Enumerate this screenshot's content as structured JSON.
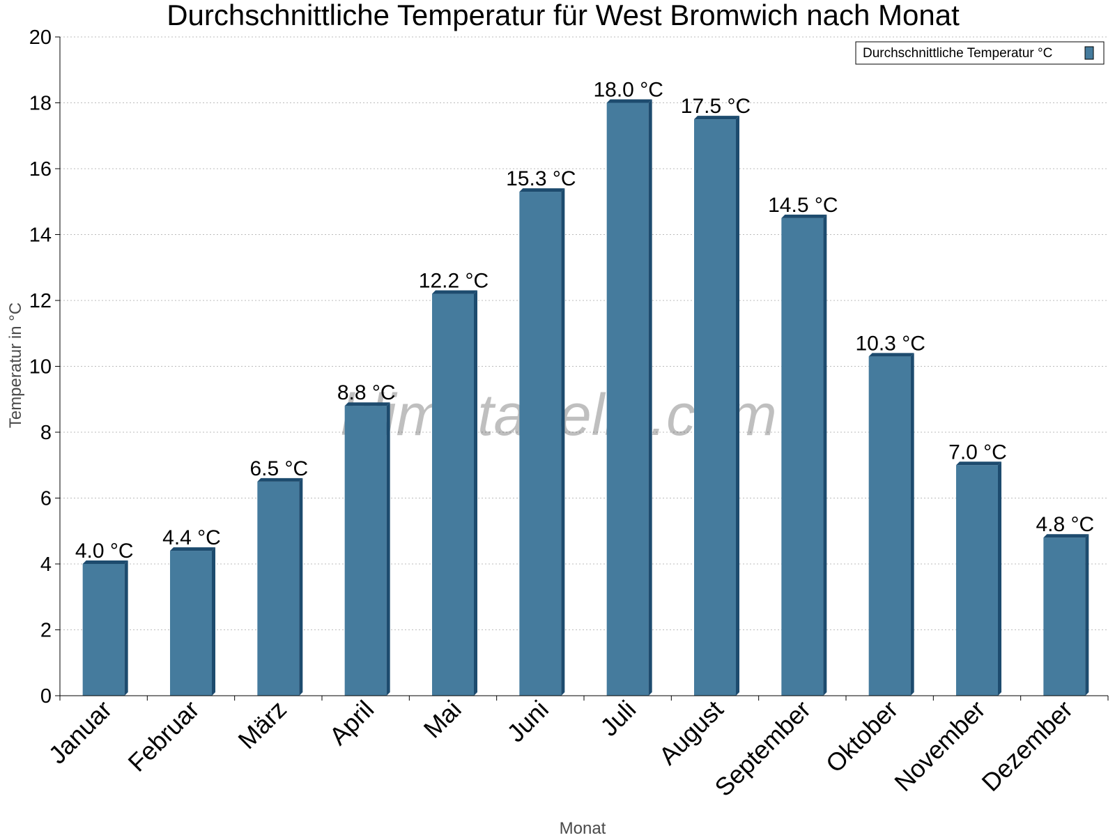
{
  "chart_data": {
    "type": "bar",
    "title": "Durchschnittliche Temperatur für West Bromwich nach Monat",
    "xlabel": "Monat",
    "ylabel": "Temperatur in °C",
    "categories": [
      "Januar",
      "Februar",
      "März",
      "April",
      "Mai",
      "Juni",
      "Juli",
      "August",
      "September",
      "Oktober",
      "November",
      "Dezember"
    ],
    "series": [
      {
        "name": "Durchschnittliche Temperatur °C",
        "values": [
          4.0,
          4.4,
          6.5,
          8.8,
          12.2,
          15.3,
          18.0,
          17.5,
          14.5,
          10.3,
          7.0,
          4.8
        ],
        "data_labels": [
          "4.0 °C",
          "4.4 °C",
          "6.5 °C",
          "8.8 °C",
          "12.2 °C",
          "15.3 °C",
          "18.0 °C",
          "17.5 °C",
          "14.5 °C",
          "10.3 °C",
          "7.0 °C",
          "4.8 °C"
        ],
        "color": "#457b9d",
        "shade_color": "#1d4b6e"
      }
    ],
    "ylim": [
      0,
      20
    ],
    "yticks": [
      "0",
      "2",
      "4",
      "6",
      "8",
      "10",
      "12",
      "14",
      "16",
      "18",
      "20"
    ],
    "grid": true,
    "legend_position": "top-right",
    "watermark": "klimatabelle.com"
  }
}
